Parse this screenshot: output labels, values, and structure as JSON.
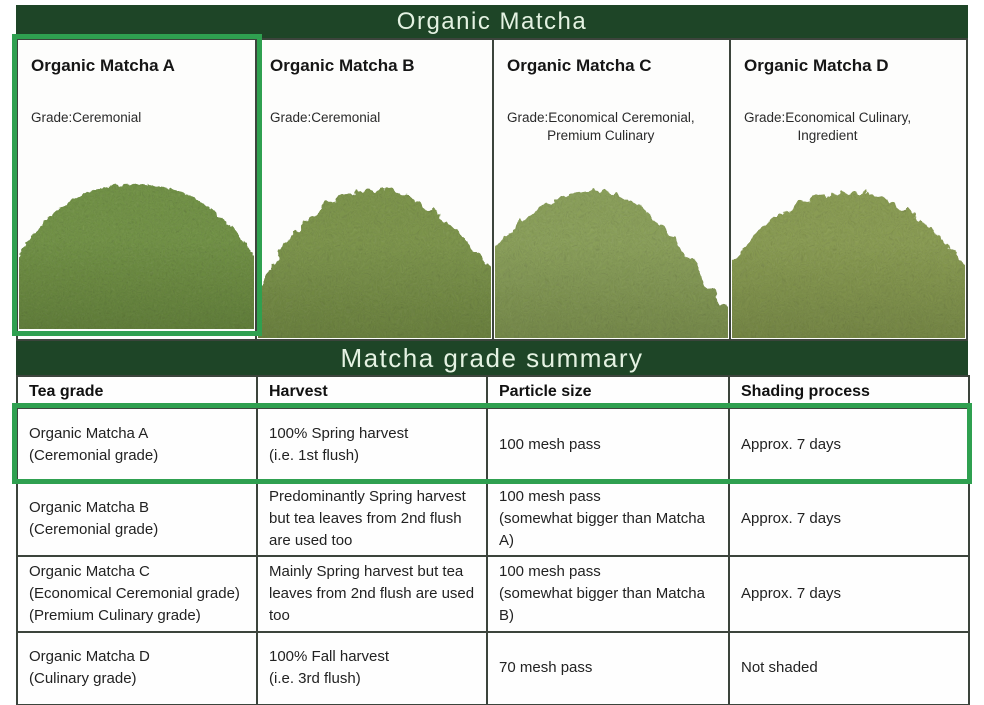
{
  "header": {
    "title": "Organic Matcha"
  },
  "summary_header": {
    "title": "Matcha grade summary"
  },
  "colors": {
    "band_bg": "#1e4527",
    "band_text": "#e4f2e2",
    "highlight_green": "#2fa050",
    "table_border": "#3c443c"
  },
  "panels": [
    {
      "name": "Organic Matcha A",
      "grade_line1": "Grade:Ceremonial",
      "grade_line2": "",
      "powder_color": "#6f9240",
      "highlighted": true
    },
    {
      "name": "Organic Matcha B",
      "grade_line1": "Grade:Ceremonial",
      "grade_line2": "",
      "powder_color": "#7b9546",
      "highlighted": false
    },
    {
      "name": "Organic Matcha C",
      "grade_line1": "Grade:Economical Ceremonial,",
      "grade_line2": "Premium Culinary",
      "powder_color": "#8aa156",
      "highlighted": false
    },
    {
      "name": "Organic Matcha D",
      "grade_line1": "Grade:Economical Culinary,",
      "grade_line2": "Ingredient",
      "powder_color": "#899d4e",
      "highlighted": false
    }
  ],
  "table": {
    "headers": [
      "Tea grade",
      "Harvest",
      "Particle size",
      "Shading process"
    ],
    "rows": [
      {
        "tea_grade": [
          "Organic Matcha A",
          "(Ceremonial grade)"
        ],
        "harvest": [
          "100% Spring harvest",
          "(i.e. 1st flush)"
        ],
        "particle_size": [
          "100 mesh pass"
        ],
        "shading_process": [
          "Approx. 7 days"
        ],
        "highlighted": true
      },
      {
        "tea_grade": [
          "Organic Matcha B",
          "(Ceremonial grade)"
        ],
        "harvest": [
          "Predominantly Spring harvest but tea leaves from 2nd flush are used too"
        ],
        "particle_size": [
          "100 mesh pass",
          "(somewhat bigger than Matcha A)"
        ],
        "shading_process": [
          "Approx. 7 days"
        ],
        "highlighted": false
      },
      {
        "tea_grade": [
          "Organic Matcha C",
          "(Economical Ceremonial grade)",
          "(Premium Culinary grade)"
        ],
        "harvest": [
          "Mainly Spring harvest but tea leaves from 2nd flush are used too"
        ],
        "particle_size": [
          "100 mesh pass",
          "(somewhat bigger than Matcha B)"
        ],
        "shading_process": [
          "Approx. 7 days"
        ],
        "highlighted": false
      },
      {
        "tea_grade": [
          "Organic Matcha D",
          "(Culinary grade)"
        ],
        "harvest": [
          "100% Fall harvest",
          "(i.e. 3rd flush)"
        ],
        "particle_size": [
          "70 mesh pass"
        ],
        "shading_process": [
          "Not shaded"
        ],
        "highlighted": false
      }
    ]
  }
}
